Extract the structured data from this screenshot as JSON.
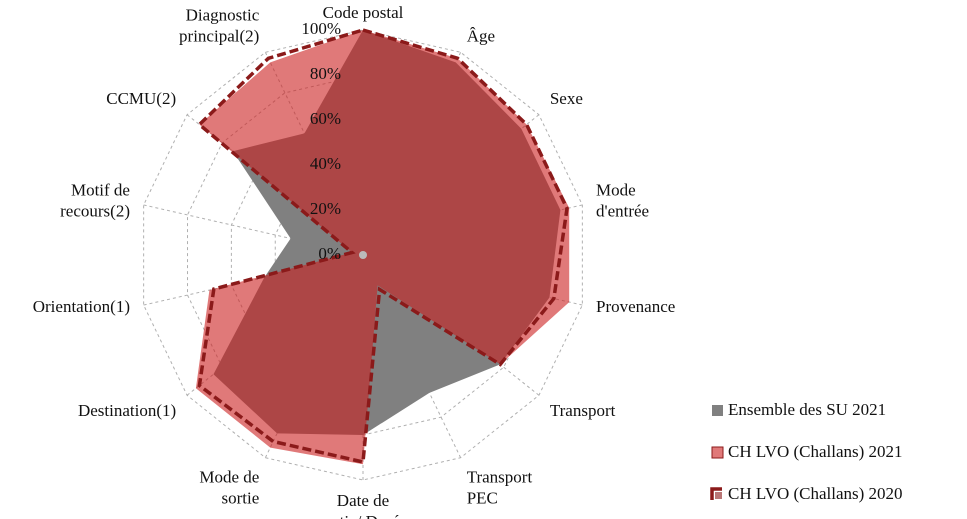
{
  "chart_data": {
    "type": "radar",
    "categories": [
      "Code postal",
      "Âge",
      "Sexe",
      "Mode\nd'entrée",
      "Provenance",
      "Transport",
      "Transport\nPEC",
      "Date de\nsortie/ Durée",
      "Mode de\nsortie",
      "Destination(1)",
      "Orientation(1)",
      "Motif de\nrecours(2)",
      "CCMU(2)",
      "Diagnostic\nprincipal(2)"
    ],
    "series": [
      {
        "name": "Ensemble des SU 2021",
        "color": "#808080",
        "style": "fill",
        "values": [
          100,
          95,
          90,
          90,
          85,
          78,
          68,
          80,
          88,
          85,
          45,
          33,
          74,
          60
        ]
      },
      {
        "name": "CH LVO (Challans) 2021",
        "color": "#cc2020",
        "style": "fill",
        "values": [
          100,
          97,
          93,
          94,
          94,
          78,
          15,
          93,
          95,
          95,
          70,
          5,
          93,
          95
        ]
      },
      {
        "name": "CH LVO (Challans) 2020",
        "color": "#8b1a1a",
        "style": "dashed",
        "values": [
          100,
          97,
          93,
          93,
          87,
          78,
          17,
          92,
          92,
          93,
          68,
          5,
          93,
          97
        ]
      }
    ],
    "rlim": [
      0,
      100
    ],
    "rticks": [
      {
        "value": 0,
        "label": "0%"
      },
      {
        "value": 20,
        "label": "20%"
      },
      {
        "value": 40,
        "label": "40%"
      },
      {
        "value": 60,
        "label": "60%"
      },
      {
        "value": 80,
        "label": "80%"
      },
      {
        "value": 100,
        "label": "100%"
      }
    ],
    "grid": true,
    "legend": "right"
  }
}
